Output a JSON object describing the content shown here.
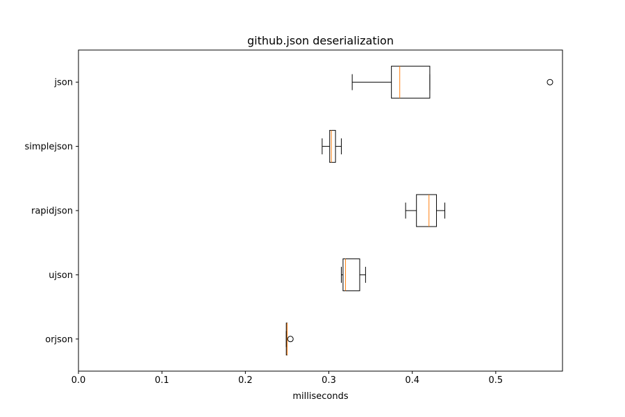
{
  "chart_data": {
    "type": "boxplot",
    "orientation": "horizontal",
    "title": "github.json deserialization",
    "xlabel": "milliseconds",
    "ylabel": "",
    "xlim": [
      0.0,
      0.58
    ],
    "x_ticks": [
      0.0,
      0.1,
      0.2,
      0.3,
      0.4,
      0.5
    ],
    "x_tick_labels": [
      "0.0",
      "0.1",
      "0.2",
      "0.3",
      "0.4",
      "0.5"
    ],
    "categories": [
      "orjson",
      "ujson",
      "rapidjson",
      "simplejson",
      "json"
    ],
    "boxes": [
      {
        "category": "orjson",
        "whisker_low": 0.249,
        "q1": 0.249,
        "median": 0.25,
        "q3": 0.25,
        "whisker_high": 0.25,
        "outliers": [
          0.254
        ]
      },
      {
        "category": "ujson",
        "whisker_low": 0.315,
        "q1": 0.317,
        "median": 0.32,
        "q3": 0.337,
        "whisker_high": 0.344,
        "outliers": []
      },
      {
        "category": "rapidjson",
        "whisker_low": 0.392,
        "q1": 0.405,
        "median": 0.42,
        "q3": 0.429,
        "whisker_high": 0.439,
        "outliers": []
      },
      {
        "category": "simplejson",
        "whisker_low": 0.292,
        "q1": 0.301,
        "median": 0.303,
        "q3": 0.308,
        "whisker_high": 0.315,
        "outliers": []
      },
      {
        "category": "json",
        "whisker_low": 0.328,
        "q1": 0.375,
        "median": 0.385,
        "q3": 0.421,
        "whisker_high": 0.421,
        "outliers": [
          0.565
        ]
      }
    ],
    "colors": {
      "box": "#000000",
      "median": "#ff7f0e",
      "background": "#ffffff"
    },
    "grid": false,
    "legend": "none"
  }
}
